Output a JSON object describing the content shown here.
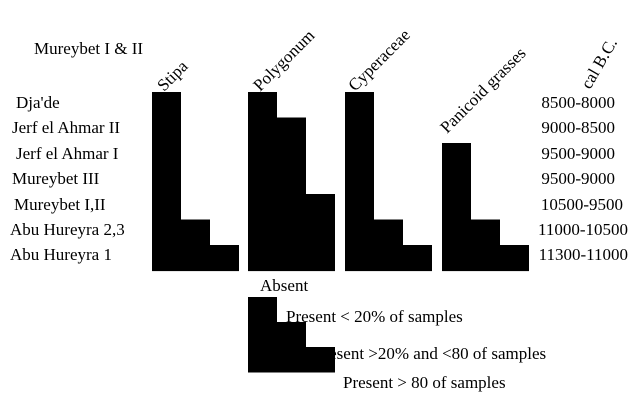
{
  "chart_data": {
    "type": "table",
    "title": "Mureybet I & II",
    "period_header": "cal B.C.",
    "sites": [
      {
        "name": "Dja'de",
        "period": "8500-8000"
      },
      {
        "name": "Jerf el Ahmar II",
        "period": "9000-8500"
      },
      {
        "name": "Jerf el Ahmar I",
        "period": "9500-9000"
      },
      {
        "name": "Mureybet III",
        "period": "9500-9000"
      },
      {
        "name": "Mureybet I,II",
        "period": "10500-9500"
      },
      {
        "name": "Abu Hureyra 2,3",
        "period": "11000-10500"
      },
      {
        "name": "Abu Hureyra 1",
        "period": "11300-11000"
      }
    ],
    "taxa": [
      {
        "name": "Stipa",
        "levels": [
          1,
          1,
          1,
          1,
          1,
          2,
          3
        ]
      },
      {
        "name": "Polygonum",
        "levels": [
          1,
          2,
          2,
          2,
          3,
          3,
          3
        ]
      },
      {
        "name": "Cyperaceae",
        "levels": [
          1,
          1,
          1,
          1,
          1,
          2,
          3
        ]
      },
      {
        "name": "Panicoid grasses",
        "levels": [
          0,
          0,
          1,
          1,
          1,
          2,
          3
        ]
      }
    ],
    "legend": [
      {
        "level": 0,
        "label": "Absent"
      },
      {
        "level": 1,
        "label": "Present < 20% of samples"
      },
      {
        "level": 2,
        "label": "Present >20% and <80 of samples"
      },
      {
        "level": 3,
        "label": "Present > 80 of samples"
      }
    ]
  }
}
